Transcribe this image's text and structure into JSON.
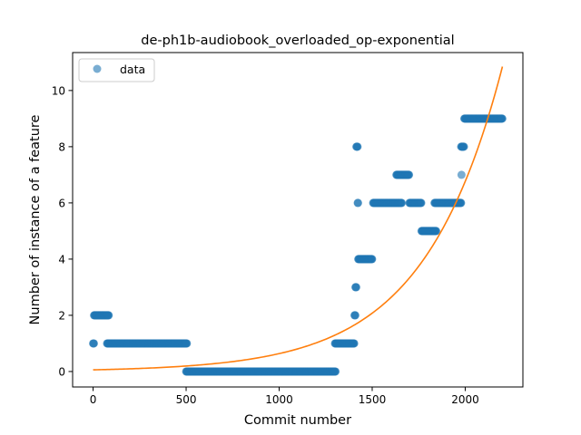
{
  "chart_data": {
    "type": "scatter",
    "title": "de-ph1b-audiobook_overloaded_op-exponential",
    "xlabel": "Commit number",
    "ylabel": "Number of instance of a feature",
    "xlim": [
      -110,
      2310
    ],
    "ylim": [
      -0.55,
      11.35
    ],
    "x_ticks": [
      0,
      500,
      1000,
      1500,
      2000
    ],
    "y_ticks": [
      0,
      2,
      4,
      6,
      8,
      10
    ],
    "grid": false,
    "legend": {
      "placement": "top-left",
      "entries": [
        "data"
      ]
    },
    "colors": {
      "data": "#1f77b4",
      "fit": "#ff7f0e"
    },
    "series": [
      {
        "name": "data",
        "kind": "points",
        "runs": [
          {
            "x_start": 0,
            "x_end": 5,
            "y": 1
          },
          {
            "x_start": 5,
            "x_end": 85,
            "y": 2
          },
          {
            "x_start": 75,
            "x_end": 505,
            "y": 1
          },
          {
            "x_start": 500,
            "x_end": 1305,
            "y": 0
          },
          {
            "x_start": 1300,
            "x_end": 1405,
            "y": 1
          },
          {
            "x_start": 1405,
            "x_end": 1410,
            "y": 2
          },
          {
            "x_start": 1410,
            "x_end": 1415,
            "y": 3
          },
          {
            "x_start": 1415,
            "x_end": 1422,
            "y": 8
          },
          {
            "x_start": 1422,
            "x_end": 1425,
            "y": 6
          },
          {
            "x_start": 1425,
            "x_end": 1500,
            "y": 4
          },
          {
            "x_start": 1505,
            "x_end": 1660,
            "y": 6
          },
          {
            "x_start": 1630,
            "x_end": 1700,
            "y": 7
          },
          {
            "x_start": 1700,
            "x_end": 1765,
            "y": 6
          },
          {
            "x_start": 1765,
            "x_end": 1845,
            "y": 5
          },
          {
            "x_start": 1835,
            "x_end": 1980,
            "y": 6
          },
          {
            "x_start": 1980,
            "x_end": 1982,
            "y": 7
          },
          {
            "x_start": 1978,
            "x_end": 1995,
            "y": 8
          },
          {
            "x_start": 1995,
            "x_end": 2200,
            "y": 9
          }
        ]
      },
      {
        "kind": "line",
        "model": "exponential",
        "y_at_x0": 0.06,
        "x_end": 2200,
        "y_at_x_end": 10.85
      }
    ]
  }
}
